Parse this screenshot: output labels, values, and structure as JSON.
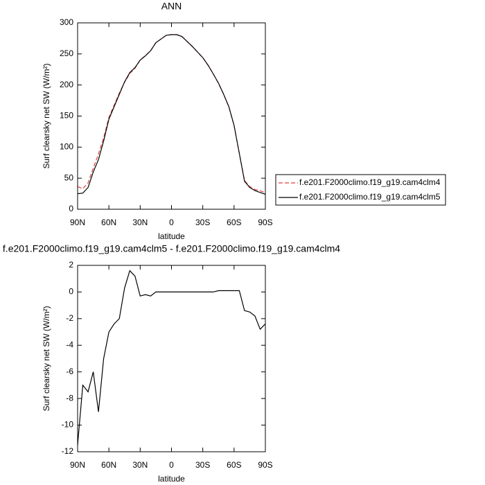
{
  "chart_data": [
    {
      "type": "line",
      "title": "ANN",
      "x_label": "latitude",
      "y_label": "Surf clearsky net SW (W/m²)",
      "x": [
        90,
        85,
        80,
        75,
        70,
        65,
        60,
        55,
        50,
        45,
        40,
        35,
        30,
        25,
        20,
        15,
        10,
        5,
        0,
        -5,
        -10,
        -15,
        -20,
        -25,
        -30,
        -35,
        -40,
        -45,
        -50,
        -55,
        -60,
        -65,
        -70,
        -75,
        -80,
        -85,
        -90
      ],
      "series": [
        {
          "name": "f.e201.F2000climo.f19_g19.cam4clm4",
          "color": "#e0403a",
          "line_style": "dashed",
          "values": [
            36.5,
            33,
            42.5,
            66,
            89,
            115,
            148,
            167.4,
            187,
            204.7,
            218.4,
            226.8,
            240.3,
            247.2,
            255.3,
            268,
            274,
            280,
            281,
            281,
            278,
            270,
            262,
            253,
            244,
            232,
            218,
            202.9,
            184.9,
            164.9,
            134.9,
            89.9,
            46.4,
            36.5,
            31.8,
            29.8,
            26.4
          ]
        },
        {
          "name": "f.e201.F2000climo.f19_g19.cam4clm5",
          "color": "#000000",
          "line_style": "solid",
          "values": [
            25,
            26,
            35,
            60,
            80,
            110,
            145,
            165,
            185,
            205,
            220,
            228,
            240,
            247,
            255,
            268,
            274,
            280,
            281,
            281,
            278,
            270,
            262,
            253,
            244,
            232,
            218,
            203,
            185,
            165,
            135,
            90,
            45,
            35,
            30,
            27,
            24
          ]
        }
      ],
      "xlim": [
        90,
        -90
      ],
      "xticks": [
        {
          "value": 90,
          "label": "90N"
        },
        {
          "value": 60,
          "label": "60N"
        },
        {
          "value": 30,
          "label": "30N"
        },
        0,
        {
          "value": -30,
          "label": "30S"
        },
        {
          "value": -60,
          "label": "60S"
        },
        {
          "value": -90,
          "label": "90S"
        }
      ],
      "ylim": [
        0,
        300
      ],
      "yticks": [
        0,
        50,
        100,
        150,
        200,
        250,
        300
      ],
      "legend": "right"
    },
    {
      "type": "line",
      "title": "f.e201.F2000climo.f19_g19.cam4clm5 - f.e201.F2000climo.f19_g19.cam4clm4",
      "x_label": "latitude",
      "y_label": "Surf clearsky net SW (W/m²)",
      "x": [
        90,
        85,
        80,
        75,
        70,
        65,
        60,
        55,
        50,
        45,
        40,
        35,
        30,
        25,
        20,
        15,
        10,
        5,
        0,
        -5,
        -10,
        -15,
        -20,
        -25,
        -30,
        -35,
        -40,
        -45,
        -50,
        -55,
        -60,
        -65,
        -70,
        -75,
        -80,
        -85,
        -90
      ],
      "values": [
        -11.5,
        -7,
        -7.5,
        -6,
        -9,
        -5,
        -3,
        -2.4,
        -2,
        0.3,
        1.6,
        1.2,
        -0.3,
        -0.2,
        -0.3,
        0,
        0,
        0,
        0,
        0,
        0,
        0,
        0,
        0,
        0,
        0,
        0,
        0.1,
        0.1,
        0.1,
        0.1,
        0.1,
        -1.4,
        -1.5,
        -1.8,
        -2.8,
        -2.4
      ],
      "color": "#000000",
      "xlim": [
        90,
        -90
      ],
      "xticks": [
        {
          "value": 90,
          "label": "90N"
        },
        {
          "value": 60,
          "label": "60N"
        },
        {
          "value": 30,
          "label": "30N"
        },
        0,
        {
          "value": -30,
          "label": "30S"
        },
        {
          "value": -60,
          "label": "60S"
        },
        {
          "value": -90,
          "label": "90S"
        }
      ],
      "ylim": [
        -12,
        2
      ],
      "yticks": [
        -12,
        -10,
        -8,
        -6,
        -4,
        -2,
        0,
        2
      ]
    }
  ]
}
